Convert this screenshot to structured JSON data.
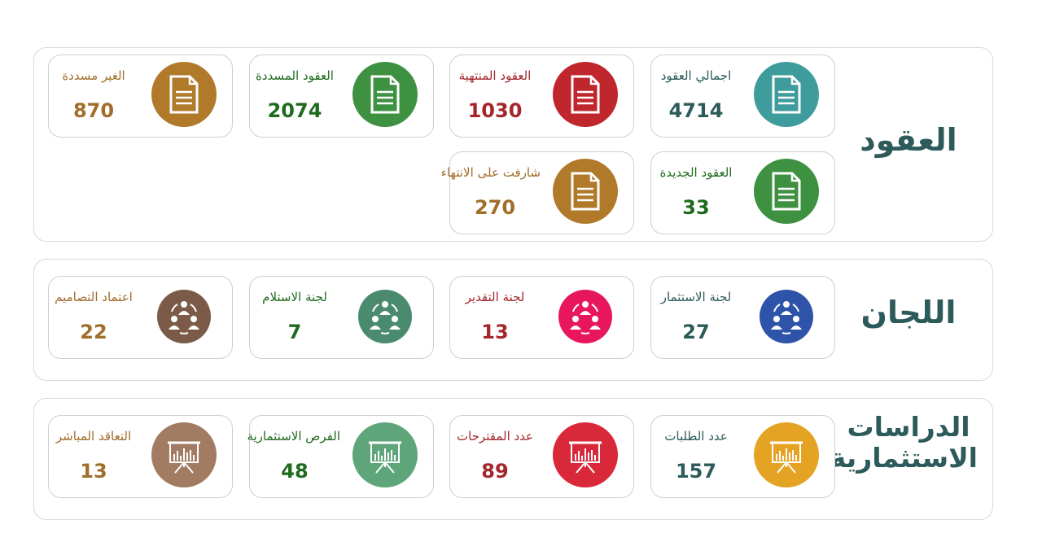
{
  "sections": [
    {
      "title": "العقود",
      "cards": [
        {
          "label": "اجمالي العقود",
          "value": "4714",
          "color": "#3e9c9c",
          "text_color": "#2d5a5a",
          "icon": "document-icon"
        },
        {
          "label": "العقود المنتهية",
          "value": "1030",
          "color": "#c0272d",
          "text_color": "#a4262c",
          "icon": "document-icon"
        },
        {
          "label": "العقود المسددة",
          "value": "2074",
          "color": "#3f9142",
          "text_color": "#1e6b1e",
          "icon": "document-icon"
        },
        {
          "label": "الغير مسددة",
          "value": "870",
          "color": "#b07a2a",
          "text_color": "#a06d2a",
          "icon": "document-icon"
        },
        {
          "label": "العقود الجديدة",
          "value": "33",
          "color": "#3f9142",
          "text_color": "#1e6b1e",
          "icon": "document-icon"
        },
        {
          "label": "شارفت على الانتهاء",
          "value": "270",
          "color": "#b07a2a",
          "text_color": "#a06d2a",
          "icon": "document-icon"
        }
      ]
    },
    {
      "title": "اللجان",
      "cards": [
        {
          "label": "لجنة الاستثمار",
          "value": "27",
          "color": "#2d54a8",
          "text_color": "#2d5a5a",
          "icon": "committee-icon"
        },
        {
          "label": "لجنة التقدير",
          "value": "13",
          "color": "#e8175d",
          "text_color": "#a4262c",
          "icon": "committee-icon"
        },
        {
          "label": "لجنة الاستلام",
          "value": "7",
          "color": "#4a8a6f",
          "text_color": "#1e6b1e",
          "icon": "committee-icon"
        },
        {
          "label": "اعتماد التصاميم",
          "value": "22",
          "color": "#7b5b48",
          "text_color": "#a06d2a",
          "icon": "committee-icon"
        }
      ]
    },
    {
      "title": "الدراسات الاستثمارية",
      "cards": [
        {
          "label": "عدد الطلبات",
          "value": "157",
          "color": "#e5a323",
          "text_color": "#2d5a5a",
          "icon": "presentation-board-icon"
        },
        {
          "label": "عدد المقترحات",
          "value": "89",
          "color": "#d9283a",
          "text_color": "#a4262c",
          "icon": "presentation-board-icon"
        },
        {
          "label": "الفرص الاستثمارية",
          "value": "48",
          "color": "#5fa57a",
          "text_color": "#1e6b1e",
          "icon": "presentation-board-icon"
        },
        {
          "label": "التعاقد المباشر",
          "value": "13",
          "color": "#a17b62",
          "text_color": "#a06d2a",
          "icon": "presentation-board-icon"
        }
      ]
    }
  ]
}
